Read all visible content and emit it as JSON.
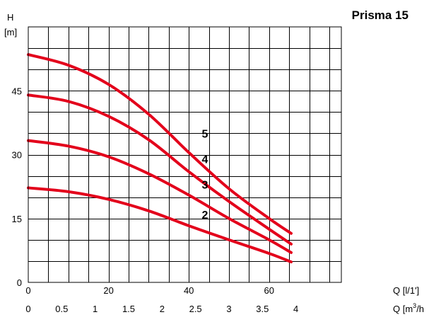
{
  "chart_data": {
    "type": "line",
    "title": "Prisma 15",
    "ylabel": "H",
    "yunit": "[m]",
    "xlabel": "Q [l/1']",
    "x2label_main": "Q [m",
    "x2label_sup": "3",
    "x2label_tail": "/h",
    "xlim": [
      0,
      78
    ],
    "x2lim": [
      0,
      4.68
    ],
    "ylim": [
      0,
      60
    ],
    "x_ticks": [
      0,
      20,
      40,
      60
    ],
    "x_tick_labels": [
      "0",
      "20",
      "40",
      "60"
    ],
    "x2_ticks": [
      0,
      0.5,
      1,
      1.5,
      2,
      2.5,
      3,
      3.5,
      4
    ],
    "x2_tick_labels": [
      "0",
      "0.5",
      "1",
      "1.5",
      "2",
      "2.5",
      "3",
      "3.5",
      "4"
    ],
    "y_ticks": [
      0,
      15,
      30,
      45
    ],
    "y_tick_labels": [
      "0",
      "15",
      "30",
      "45"
    ],
    "grid": true,
    "grid_x_step": 5,
    "grid_y_step": 5,
    "line_color": "#e3001b",
    "series": [
      {
        "name": "5",
        "x": [
          0,
          10,
          20,
          30,
          40,
          50,
          60,
          65.5
        ],
        "values": [
          53.5,
          51,
          46.5,
          39.5,
          30.5,
          22,
          15,
          11.5
        ]
      },
      {
        "name": "4",
        "x": [
          0,
          10,
          20,
          30,
          40,
          50,
          60,
          65.5
        ],
        "values": [
          44,
          42.5,
          39,
          33.5,
          26,
          19,
          12.5,
          9
        ]
      },
      {
        "name": "3",
        "x": [
          0,
          10,
          20,
          30,
          40,
          50,
          60,
          65.5
        ],
        "values": [
          33.3,
          32,
          29.5,
          25.5,
          20.5,
          15,
          10,
          7
        ]
      },
      {
        "name": "2",
        "x": [
          0,
          10,
          20,
          30,
          40,
          50,
          60,
          65.5
        ],
        "values": [
          22.2,
          21.3,
          19.5,
          16.8,
          13.3,
          10,
          6.8,
          4.8
        ]
      }
    ],
    "curve_labels": [
      {
        "text": "5",
        "x": 44,
        "y": 34
      },
      {
        "text": "4",
        "x": 44,
        "y": 28
      },
      {
        "text": "3",
        "x": 44,
        "y": 22
      },
      {
        "text": "2",
        "x": 44,
        "y": 15
      }
    ]
  }
}
